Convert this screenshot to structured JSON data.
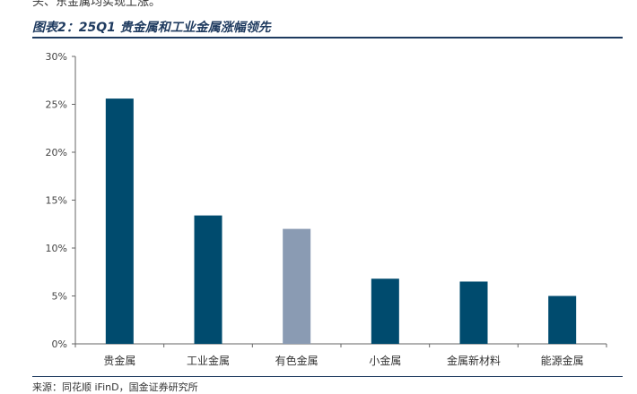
{
  "page": {
    "top_fragment": "头、东金属均实现上涨。",
    "figure_title": "图表2：25Q1 贵金属和工业金属涨幅领先",
    "source_note": "来源：同花顺 iFinD，国金证券研究所"
  },
  "chart_data": {
    "type": "bar",
    "title": "",
    "xlabel": "",
    "ylabel": "",
    "categories": [
      "贵金属",
      "工业金属",
      "有色金属",
      "小金属",
      "金属新材料",
      "能源金属"
    ],
    "values": [
      25.6,
      13.4,
      12.0,
      6.8,
      6.5,
      5.0
    ],
    "ylim": [
      0,
      30
    ],
    "yticks": [
      0,
      5,
      10,
      15,
      20,
      25,
      30
    ],
    "ytick_labels": [
      "0%",
      "5%",
      "10%",
      "15%",
      "20%",
      "25%",
      "30%"
    ],
    "grid": false,
    "legend": "none",
    "colors": [
      "#004b6e",
      "#004b6e",
      "#8a9bb3",
      "#004b6e",
      "#004b6e",
      "#004b6e"
    ],
    "axis_color": "#666666"
  }
}
